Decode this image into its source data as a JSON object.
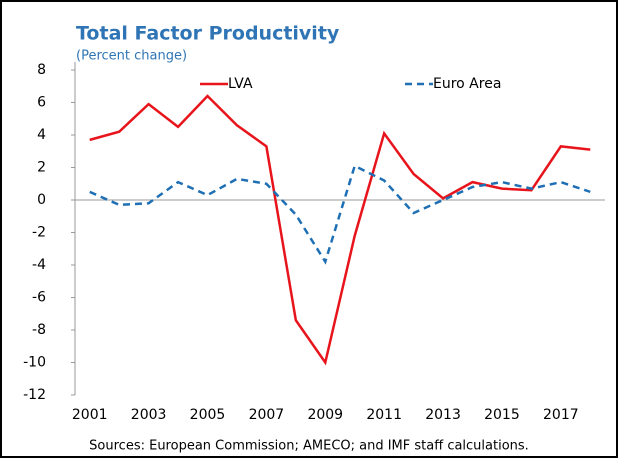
{
  "chart_data": {
    "type": "line",
    "title": "Total Factor Productivity",
    "subtitle": "(Percent change)",
    "x": [
      2001,
      2002,
      2003,
      2004,
      2005,
      2006,
      2007,
      2008,
      2009,
      2010,
      2011,
      2012,
      2013,
      2014,
      2015,
      2016,
      2017,
      2018
    ],
    "series": [
      {
        "name": "LVA",
        "color": "#e8141b",
        "dash": false,
        "values": [
          3.7,
          4.2,
          5.9,
          4.5,
          6.4,
          4.6,
          3.3,
          -7.4,
          -10.0,
          -2.2,
          4.1,
          1.6,
          0.1,
          1.1,
          0.7,
          0.6,
          3.3,
          3.1
        ]
      },
      {
        "name": "Euro Area",
        "color": "#1f6fb4",
        "dash": true,
        "values": [
          0.5,
          -0.3,
          -0.2,
          1.1,
          0.3,
          1.3,
          1.0,
          -0.9,
          -3.8,
          2.1,
          1.2,
          -0.8,
          0.0,
          0.8,
          1.1,
          0.7,
          1.1,
          0.5
        ]
      }
    ],
    "xlim": [
      2000.5,
      2018.5
    ],
    "xticks": [
      2001,
      2003,
      2005,
      2007,
      2009,
      2011,
      2013,
      2015,
      2017
    ],
    "ylim": [
      -12,
      8
    ],
    "yticks": [
      -12,
      -10,
      -8,
      -6,
      -4,
      -2,
      0,
      2,
      4,
      6,
      8
    ],
    "legend": "top",
    "source": "Sources: European Commission; AMECO; and IMF staff calculations."
  }
}
